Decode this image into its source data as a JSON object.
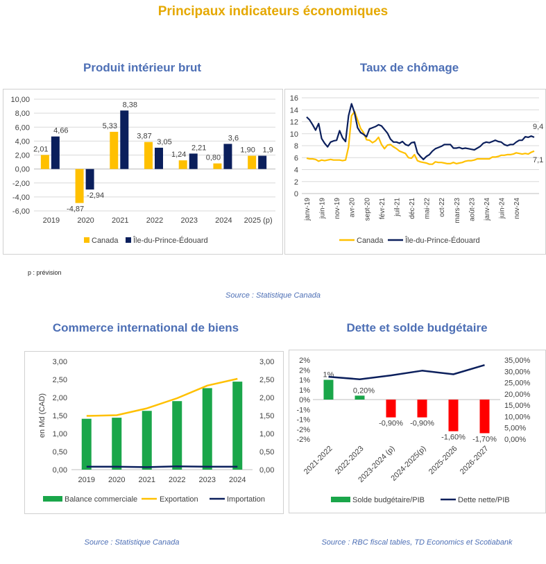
{
  "page": {
    "title": "Principaux indicateurs économiques"
  },
  "colors": {
    "title": "#e5a800",
    "section": "#4d6fb5",
    "canada": "#ffc000",
    "pei": "#0b1f5c",
    "green": "#1aa64a",
    "red": "#ff0000"
  },
  "note": "p : prévision",
  "source1": "Source : Statistique Canada",
  "source2": "Source : Statistique Canada",
  "source3": "Source : RBC fiscal tables, TD Economics et Scotiabank",
  "chart_data": [
    {
      "id": "pib",
      "type": "bar",
      "title": "Produit intérieur brut",
      "categories": [
        "2019",
        "2020",
        "2021",
        "2022",
        "2023",
        "2024",
        "2025 (p)"
      ],
      "series": [
        {
          "name": "Canada",
          "values": [
            2.01,
            -4.87,
            5.33,
            3.87,
            1.24,
            0.8,
            1.9
          ],
          "labels": [
            "2,01",
            "-4,87",
            "5,33",
            "3,87",
            "1,24",
            "0,80",
            "1,90"
          ]
        },
        {
          "name": "Île-du-Prince-Édouard",
          "values": [
            4.66,
            -2.94,
            8.38,
            3.05,
            2.21,
            3.6,
            1.9
          ],
          "labels": [
            "4,66",
            "-2,94",
            "8,38",
            "3,05",
            "2,21",
            "3,6",
            "1,9"
          ]
        }
      ],
      "ylim": [
        -6,
        10
      ],
      "yticks": [
        "-6,00",
        "-4,00",
        "-2,00",
        "0,00",
        "2,00",
        "4,00",
        "6,00",
        "8,00",
        "10,00"
      ],
      "legend": "bottom"
    },
    {
      "id": "chomage",
      "type": "line",
      "title": "Taux de chômage",
      "x_tick_labels": [
        "janv-19",
        "juin-19",
        "nov-19",
        "avr-20",
        "sept-20",
        "févr-21",
        "juil-21",
        "déc-21",
        "mai-22",
        "oct-22",
        "mars-23",
        "août-23",
        "janv-24",
        "juin-24",
        "nov-24"
      ],
      "series": [
        {
          "name": "Canada",
          "last_label": "7,1",
          "values": [
            5.9,
            5.8,
            5.8,
            5.7,
            5.4,
            5.6,
            5.5,
            5.6,
            5.7,
            5.6,
            5.6,
            5.6,
            5.5,
            5.6,
            7.8,
            13.0,
            13.7,
            12.3,
            10.9,
            10.2,
            9.0,
            8.9,
            8.5,
            8.8,
            9.4,
            8.2,
            7.5,
            8.1,
            8.2,
            7.8,
            7.5,
            7.1,
            6.9,
            6.7,
            6.0,
            5.9,
            6.5,
            5.5,
            5.3,
            5.2,
            5.1,
            4.9,
            4.9,
            5.3,
            5.2,
            5.2,
            5.1,
            5.0,
            5.0,
            5.2,
            5.0,
            5.1,
            5.2,
            5.4,
            5.5,
            5.5,
            5.6,
            5.8,
            5.8,
            5.8,
            5.8,
            5.8,
            6.1,
            6.1,
            6.2,
            6.4,
            6.4,
            6.5,
            6.5,
            6.6,
            6.8,
            6.7,
            6.6,
            6.7,
            6.6,
            6.9,
            7.1
          ]
        },
        {
          "name": "Île-du-Prince-Édouard",
          "last_label": "9,4",
          "values": [
            12.8,
            12.3,
            11.5,
            10.6,
            11.7,
            9.2,
            8.4,
            7.8,
            8.6,
            8.8,
            8.9,
            10.5,
            9.3,
            8.7,
            13.0,
            15.0,
            13.5,
            11.0,
            10.2,
            9.9,
            9.5,
            10.8,
            11.0,
            11.2,
            11.5,
            11.3,
            10.7,
            10.1,
            9.1,
            8.6,
            8.6,
            8.4,
            8.7,
            8.2,
            8.0,
            8.5,
            8.6,
            6.8,
            6.2,
            5.7,
            6.2,
            6.5,
            7.1,
            7.5,
            7.7,
            7.9,
            8.2,
            8.2,
            8.2,
            7.6,
            7.6,
            7.7,
            7.5,
            7.6,
            7.5,
            7.4,
            7.3,
            7.6,
            7.9,
            8.4,
            8.6,
            8.5,
            8.7,
            8.9,
            8.7,
            8.6,
            8.2,
            8.0,
            8.2,
            8.2,
            8.6,
            8.9,
            8.9,
            9.5,
            9.4,
            9.6,
            9.4
          ]
        }
      ],
      "ylim": [
        0,
        16
      ],
      "yticks": [
        "0",
        "2",
        "4",
        "6",
        "8",
        "10",
        "12",
        "14",
        "16"
      ],
      "legend": "bottom"
    },
    {
      "id": "commerce",
      "type": "bar",
      "title": "Commerce international de biens",
      "ylabel": "en Md (CAD)",
      "categories": [
        "2019",
        "2020",
        "2021",
        "2022",
        "2023",
        "2024"
      ],
      "series": [
        {
          "name": "Balance commerciale",
          "kind": "bar",
          "values": [
            1.41,
            1.44,
            1.63,
            1.9,
            2.26,
            2.44
          ]
        },
        {
          "name": "Exportation",
          "kind": "line",
          "values": [
            1.49,
            1.51,
            1.7,
            1.98,
            2.33,
            2.52
          ]
        },
        {
          "name": "Importation",
          "kind": "line",
          "values": [
            0.08,
            0.08,
            0.07,
            0.09,
            0.08,
            0.08
          ]
        }
      ],
      "ylim": [
        0,
        3
      ],
      "yticks": [
        "0,00",
        "0,50",
        "1,00",
        "1,50",
        "2,00",
        "2,50",
        "3,00"
      ],
      "legend": "bottom"
    },
    {
      "id": "dette",
      "type": "bar",
      "title": "Dette et solde budgétaire",
      "categories": [
        "2021-2022",
        "2022-2023",
        "2023-2024 (p)",
        "2024-2025(p)",
        "2025-2026",
        "2026-2027"
      ],
      "series": [
        {
          "name": "Solde budgétaire/PIB",
          "kind": "bar",
          "axis": "left",
          "values": [
            1.0,
            0.2,
            -0.9,
            -0.9,
            -1.6,
            -1.7
          ],
          "labels": [
            "1%",
            "0,20%",
            "-0,90%",
            "-0,90%",
            "-1,60%",
            "-1,70%"
          ],
          "colors": [
            "#1aa64a",
            "#1aa64a",
            "#ff0000",
            "#ff0000",
            "#ff0000",
            "#ff0000"
          ]
        },
        {
          "name": "Dette nette/PIB",
          "kind": "line",
          "axis": "right",
          "values": [
            27.6,
            26.5,
            28.2,
            30.3,
            28.7,
            32.8
          ]
        }
      ],
      "ylim_left": [
        -2,
        2
      ],
      "ylim_right": [
        0,
        35
      ],
      "yticks_left": [
        "-2%",
        "-2%",
        "-1%",
        "-1%",
        "0%",
        "1%",
        "1%",
        "2%",
        "2%"
      ],
      "yticks_right": [
        "0,00%",
        "5,00%",
        "10,00%",
        "15,00%",
        "20,00%",
        "25,00%",
        "30,00%",
        "35,00%"
      ],
      "legend": "bottom"
    }
  ]
}
